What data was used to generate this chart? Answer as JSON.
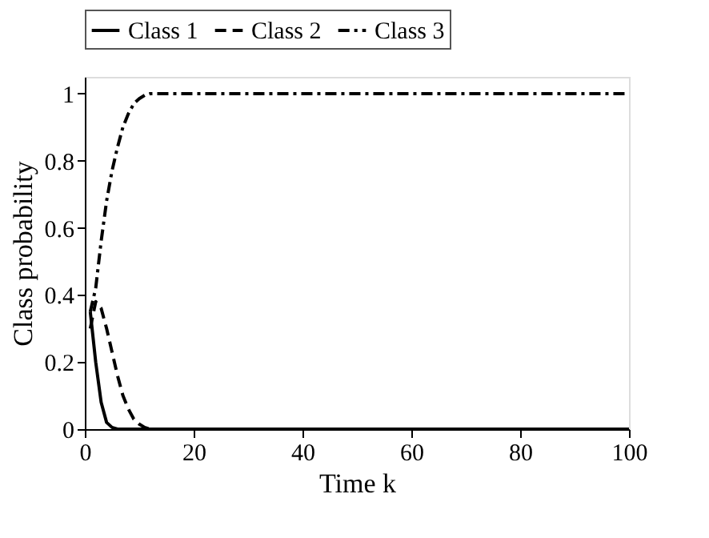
{
  "chart_data": {
    "type": "line",
    "xlabel": "Time k",
    "ylabel": "Class probability",
    "xlim": [
      0,
      100
    ],
    "ylim": [
      0,
      1.05
    ],
    "xticks": [
      0,
      20,
      40,
      60,
      80,
      100
    ],
    "yticks": [
      0,
      0.2,
      0.4,
      0.6,
      0.8,
      1
    ],
    "grid": false,
    "legend": "top",
    "marker": "none",
    "x": [
      1,
      2,
      3,
      4,
      5,
      6,
      7,
      8,
      9,
      10,
      11,
      12,
      13,
      14,
      15,
      20,
      30,
      40,
      50,
      60,
      70,
      80,
      90,
      100
    ],
    "series": [
      {
        "name": "Class 1",
        "color": "#000000",
        "line_style": "solid",
        "values": [
          0.35,
          0.2,
          0.08,
          0.02,
          0.005,
          0,
          0,
          0,
          0,
          0,
          0,
          0,
          0,
          0,
          0,
          0,
          0,
          0,
          0,
          0,
          0,
          0,
          0,
          0
        ]
      },
      {
        "name": "Class 2",
        "color": "#000000",
        "line_style": "dashed",
        "values": [
          0.3,
          0.38,
          0.36,
          0.3,
          0.23,
          0.16,
          0.1,
          0.06,
          0.03,
          0.015,
          0.005,
          0,
          0,
          0,
          0,
          0,
          0,
          0,
          0,
          0,
          0,
          0,
          0,
          0
        ]
      },
      {
        "name": "Class 3",
        "color": "#000000",
        "line_style": "dashdot",
        "values": [
          0.35,
          0.42,
          0.56,
          0.68,
          0.77,
          0.84,
          0.9,
          0.94,
          0.97,
          0.985,
          0.995,
          1,
          1,
          1,
          1,
          1,
          1,
          1,
          1,
          1,
          1,
          1,
          1,
          1
        ]
      }
    ]
  }
}
